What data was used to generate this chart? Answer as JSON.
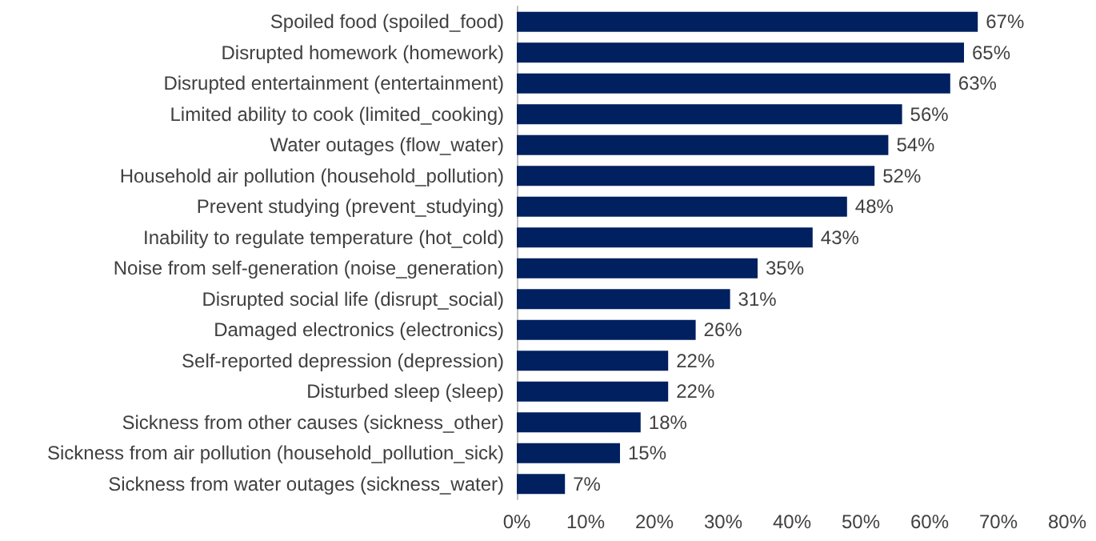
{
  "chart_data": {
    "type": "bar",
    "orientation": "horizontal",
    "categories": [
      "Spoiled food (spoiled_food)",
      "Disrupted homework (homework)",
      "Disrupted entertainment (entertainment)",
      "Limited ability to cook (limited_cooking)",
      "Water outages (flow_water)",
      "Household air pollution (household_pollution)",
      "Prevent studying (prevent_studying)",
      "Inability to regulate temperature (hot_cold)",
      "Noise from self-generation (noise_generation)",
      "Disrupted social life (disrupt_social)",
      "Damaged electronics (electronics)",
      "Self-reported depression (depression)",
      "Disturbed sleep (sleep)",
      "Sickness from other causes (sickness_other)",
      "Sickness from air pollution (household_pollution_sick)",
      "Sickness from water outages (sickness_water)"
    ],
    "values": [
      67,
      65,
      63,
      56,
      54,
      52,
      48,
      43,
      35,
      31,
      26,
      22,
      22,
      18,
      15,
      7
    ],
    "value_labels": [
      "67%",
      "65%",
      "63%",
      "56%",
      "54%",
      "52%",
      "48%",
      "43%",
      "35%",
      "31%",
      "26%",
      "22%",
      "22%",
      "18%",
      "15%",
      "7%"
    ],
    "color": "#002060",
    "xlim": [
      0,
      80
    ],
    "xticks": [
      {
        "value": 0,
        "label": "0%"
      },
      {
        "value": 10,
        "label": "10%"
      },
      {
        "value": 20,
        "label": "20%"
      },
      {
        "value": 30,
        "label": "30%"
      },
      {
        "value": 40,
        "label": "40%"
      },
      {
        "value": 50,
        "label": "50%"
      },
      {
        "value": 60,
        "label": "60%"
      },
      {
        "value": 70,
        "label": "70%"
      },
      {
        "value": 80,
        "label": "80%"
      }
    ],
    "grid": false
  }
}
